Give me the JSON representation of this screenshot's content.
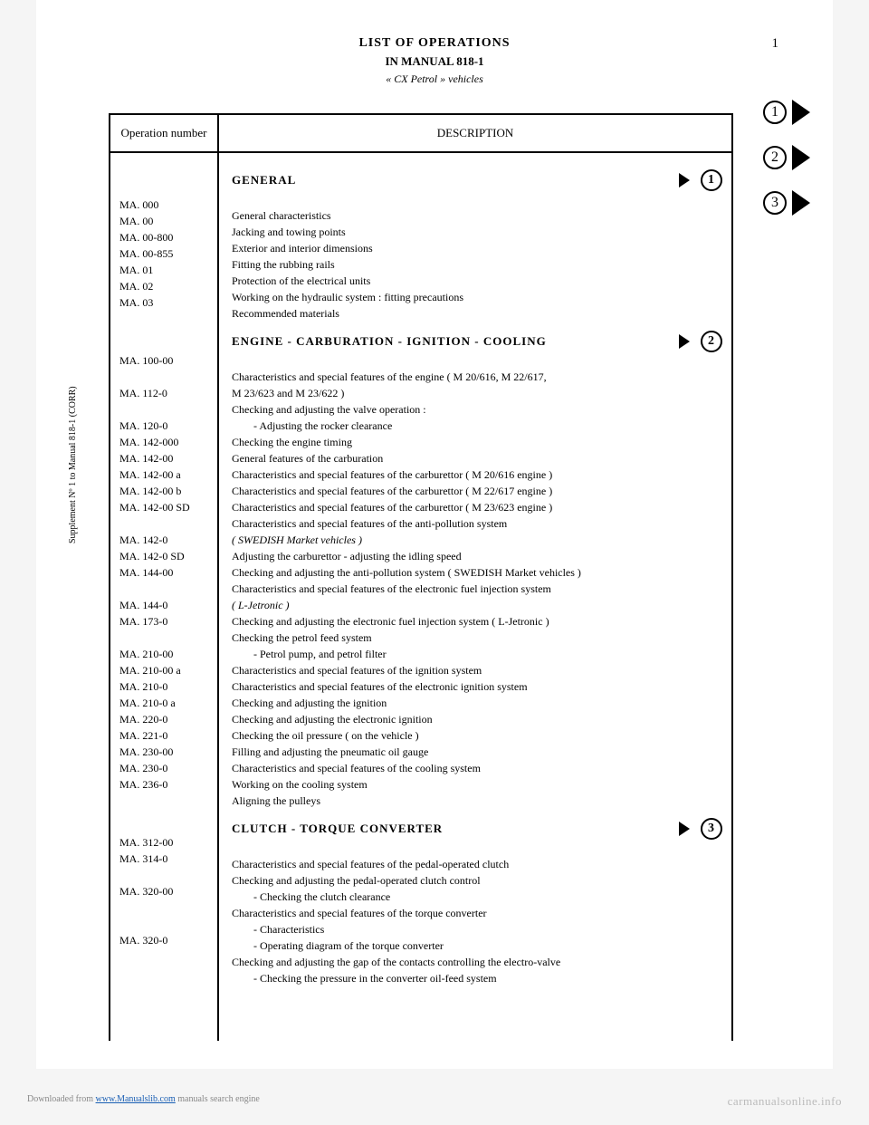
{
  "page_number": "1",
  "header": {
    "title": "LIST OF OPERATIONS",
    "subtitle": "IN MANUAL 818-1",
    "note": "« CX Petrol » vehicles"
  },
  "side_label": "Supplement Nº 1 to Manual 818-1 (CORR)",
  "columns": {
    "operation": "Operation number",
    "description": "DESCRIPTION"
  },
  "tabs": [
    "1",
    "2",
    "3"
  ],
  "sections": [
    {
      "heading": "GENERAL",
      "marker": "1",
      "rows": [
        {
          "op": "MA. 000",
          "desc": "General characteristics"
        },
        {
          "op": "MA. 00",
          "desc": "Jacking and towing points"
        },
        {
          "op": "MA. 00-800",
          "desc": "Exterior and interior dimensions"
        },
        {
          "op": "MA. 00-855",
          "desc": "Fitting the rubbing rails"
        },
        {
          "op": "MA. 01",
          "desc": "Protection of the electrical units"
        },
        {
          "op": "MA. 02",
          "desc": "Working on the hydraulic system : fitting precautions"
        },
        {
          "op": "MA. 03",
          "desc": "Recommended materials"
        }
      ]
    },
    {
      "heading": "ENGINE - CARBURATION - IGNITION - COOLING",
      "marker": "2",
      "rows": [
        {
          "op": "MA. 100-00",
          "desc": "Characteristics and special features of the engine ( M 20/616, M 22/617,"
        },
        {
          "op": "",
          "desc": "M 23/623 and M 23/622 )"
        },
        {
          "op": "MA. 112-0",
          "desc": "Checking and adjusting the valve operation :"
        },
        {
          "op": "",
          "desc": "- Adjusting the rocker clearance",
          "sub": true
        },
        {
          "op": "MA. 120-0",
          "desc": "Checking the engine timing"
        },
        {
          "op": "MA. 142-000",
          "desc": "General features of the carburation"
        },
        {
          "op": "MA. 142-00",
          "desc": "Characteristics and special features of the carburettor ( M 20/616 engine )"
        },
        {
          "op": "MA. 142-00 a",
          "desc": "Characteristics and special features of the carburettor ( M 22/617 engine )"
        },
        {
          "op": "MA. 142-00 b",
          "desc": "Characteristics and special features of the carburettor ( M 23/623 engine )"
        },
        {
          "op": "MA. 142-00 SD",
          "desc": "Characteristics and special features of the anti-pollution system"
        },
        {
          "op": "",
          "desc": "( SWEDISH Market vehicles )",
          "italic": true
        },
        {
          "op": "MA. 142-0",
          "desc": "Adjusting the carburettor - adjusting the idling speed"
        },
        {
          "op": "MA. 142-0 SD",
          "desc": "Checking and adjusting the anti-pollution system ( SWEDISH Market vehicles )"
        },
        {
          "op": "MA. 144-00",
          "desc": "Characteristics and special features of the electronic fuel injection system"
        },
        {
          "op": "",
          "desc": "( L-Jetronic )",
          "italic": true
        },
        {
          "op": "MA. 144-0",
          "desc": "Checking and adjusting the electronic fuel injection system ( L-Jetronic )"
        },
        {
          "op": "MA. 173-0",
          "desc": "Checking the petrol feed system"
        },
        {
          "op": "",
          "desc": "- Petrol pump, and petrol filter",
          "sub": true
        },
        {
          "op": "MA. 210-00",
          "desc": "Characteristics and special features of the ignition system"
        },
        {
          "op": "MA. 210-00 a",
          "desc": "Characteristics and special features of the electronic ignition system"
        },
        {
          "op": "MA. 210-0",
          "desc": "Checking and adjusting the ignition"
        },
        {
          "op": "MA. 210-0 a",
          "desc": "Checking and adjusting the electronic ignition"
        },
        {
          "op": "MA. 220-0",
          "desc": "Checking the oil pressure ( on the vehicle )"
        },
        {
          "op": "MA. 221-0",
          "desc": "Filling and adjusting the pneumatic oil gauge"
        },
        {
          "op": "MA. 230-00",
          "desc": "Characteristics and special features of the cooling system"
        },
        {
          "op": "MA. 230-0",
          "desc": "Working on the cooling system"
        },
        {
          "op": "MA. 236-0",
          "desc": "Aligning the pulleys"
        }
      ]
    },
    {
      "heading": "CLUTCH - TORQUE CONVERTER",
      "marker": "3",
      "rows": [
        {
          "op": "MA. 312-00",
          "desc": "Characteristics and special features of the pedal-operated clutch"
        },
        {
          "op": "MA. 314-0",
          "desc": "Checking and adjusting the pedal-operated clutch control"
        },
        {
          "op": "",
          "desc": "- Checking the clutch clearance",
          "sub": true
        },
        {
          "op": "MA. 320-00",
          "desc": "Characteristics and special features of the torque converter"
        },
        {
          "op": "",
          "desc": "- Characteristics",
          "sub": true
        },
        {
          "op": "",
          "desc": "- Operating diagram of the torque converter",
          "sub": true
        },
        {
          "op": "MA. 320-0",
          "desc": "Checking and adjusting the gap of the contacts controlling the electro-valve"
        },
        {
          "op": "",
          "desc": "- Checking the pressure in the converter oil-feed system",
          "sub": true
        }
      ]
    }
  ],
  "footer": {
    "left_prefix": "Downloaded from ",
    "left_link": "www.Manualslib.com",
    "left_suffix": " manuals search engine",
    "right": "carmanualsonline.info"
  }
}
